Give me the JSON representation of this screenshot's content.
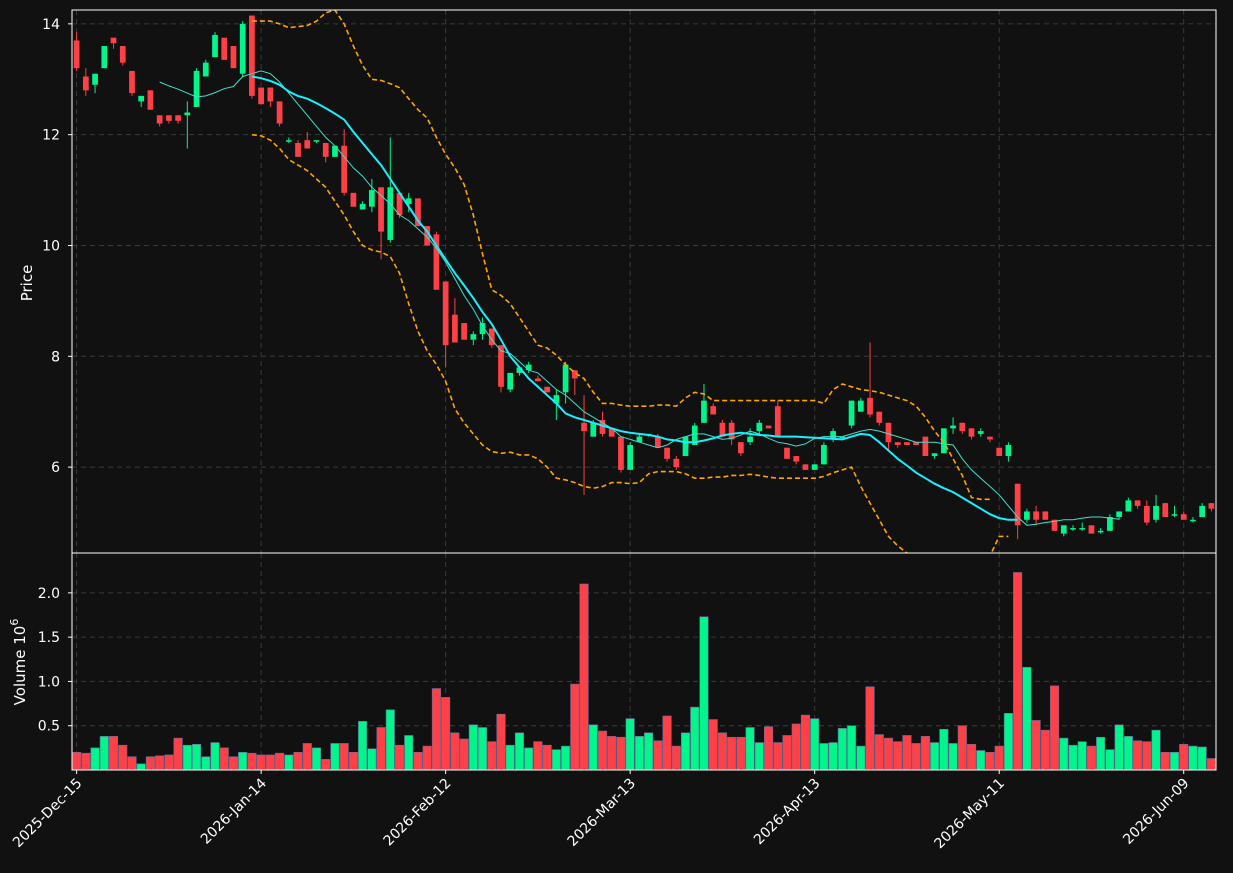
{
  "chart_data": [
    {
      "type": "candlestick",
      "ylabel": "Price",
      "ylim": [
        4.45,
        14.25
      ],
      "yticks": [
        6,
        8,
        10,
        12,
        14
      ],
      "grid": true,
      "x_date_labels": [
        "2025-Dec-15",
        "2026-Jan-14",
        "2026-Feb-12",
        "2026-Mar-13",
        "2026-Apr-13",
        "2026-May-11",
        "2026-Jun-09"
      ],
      "x_date_label_index": [
        0,
        20,
        40,
        60,
        80,
        100,
        120
      ],
      "candles_ohlc": [
        [
          13.7,
          13.85,
          13.15,
          13.2
        ],
        [
          13.05,
          13.2,
          12.7,
          12.8
        ],
        [
          12.9,
          13.1,
          12.75,
          13.1
        ],
        [
          13.2,
          13.6,
          13.2,
          13.6
        ],
        [
          13.75,
          13.75,
          13.55,
          13.65
        ],
        [
          13.6,
          13.6,
          13.25,
          13.3
        ],
        [
          13.15,
          13.15,
          12.7,
          12.75
        ],
        [
          12.6,
          12.7,
          12.5,
          12.7
        ],
        [
          12.8,
          12.8,
          12.45,
          12.45
        ],
        [
          12.35,
          12.35,
          12.15,
          12.2
        ],
        [
          12.35,
          12.35,
          12.2,
          12.25
        ],
        [
          12.35,
          12.35,
          12.2,
          12.25
        ],
        [
          12.35,
          12.6,
          11.75,
          12.4
        ],
        [
          12.5,
          13.2,
          12.5,
          13.15
        ],
        [
          13.05,
          13.35,
          13.05,
          13.3
        ],
        [
          13.4,
          13.85,
          13.4,
          13.8
        ],
        [
          13.75,
          13.75,
          13.4,
          13.35
        ],
        [
          13.6,
          13.6,
          13.2,
          13.2
        ],
        [
          13.1,
          14.05,
          13.05,
          14.0
        ],
        [
          14.15,
          14.15,
          12.65,
          12.7
        ],
        [
          12.85,
          12.85,
          12.55,
          12.55
        ],
        [
          12.85,
          12.85,
          12.5,
          12.6
        ],
        [
          12.6,
          12.6,
          12.15,
          12.2
        ],
        [
          11.9,
          11.95,
          11.85,
          11.9
        ],
        [
          11.85,
          11.9,
          11.6,
          11.6
        ],
        [
          11.9,
          12.05,
          11.75,
          11.75
        ],
        [
          11.9,
          11.9,
          11.85,
          11.9
        ],
        [
          11.85,
          11.85,
          11.5,
          11.6
        ],
        [
          11.6,
          11.8,
          11.6,
          11.8
        ],
        [
          11.8,
          12.1,
          10.9,
          10.95
        ],
        [
          10.95,
          10.95,
          10.7,
          10.7
        ],
        [
          10.65,
          10.8,
          10.65,
          10.75
        ],
        [
          10.7,
          11.2,
          10.6,
          11.0
        ],
        [
          11.05,
          11.05,
          9.75,
          10.25
        ],
        [
          10.1,
          11.95,
          10.05,
          11.05
        ],
        [
          10.95,
          10.95,
          10.5,
          10.55
        ],
        [
          10.75,
          10.95,
          10.6,
          10.85
        ],
        [
          10.85,
          10.85,
          10.35,
          10.35
        ],
        [
          10.35,
          10.35,
          10.0,
          10.0
        ],
        [
          10.2,
          10.25,
          9.3,
          9.2
        ],
        [
          9.35,
          9.35,
          7.8,
          8.2
        ],
        [
          8.75,
          9.05,
          8.3,
          8.25
        ],
        [
          8.6,
          8.6,
          8.3,
          8.3
        ],
        [
          8.3,
          8.45,
          8.2,
          8.4
        ],
        [
          8.4,
          8.7,
          8.3,
          8.6
        ],
        [
          8.5,
          8.5,
          8.15,
          8.2
        ],
        [
          8.2,
          8.2,
          7.35,
          7.45
        ],
        [
          7.4,
          7.7,
          7.35,
          7.7
        ],
        [
          7.7,
          7.8,
          7.65,
          7.8
        ],
        [
          7.75,
          7.9,
          7.7,
          7.85
        ],
        [
          7.6,
          7.65,
          7.55,
          7.55
        ],
        [
          7.45,
          7.45,
          7.35,
          7.35
        ],
        [
          7.15,
          7.4,
          6.85,
          7.3
        ],
        [
          7.35,
          7.9,
          7.15,
          7.85
        ],
        [
          7.75,
          7.75,
          7.3,
          7.6
        ],
        [
          6.8,
          7.3,
          5.5,
          6.65
        ],
        [
          6.55,
          6.85,
          6.55,
          6.8
        ],
        [
          6.85,
          7.0,
          6.55,
          6.6
        ],
        [
          6.7,
          6.7,
          6.55,
          6.55
        ],
        [
          6.55,
          6.55,
          5.9,
          5.95
        ],
        [
          5.95,
          6.45,
          5.95,
          6.4
        ],
        [
          6.45,
          6.6,
          6.45,
          6.55
        ],
        [
          6.6,
          6.6,
          6.55,
          6.6
        ],
        [
          6.55,
          6.6,
          6.35,
          6.35
        ],
        [
          6.35,
          6.35,
          6.1,
          6.15
        ],
        [
          6.15,
          6.2,
          5.95,
          6.0
        ],
        [
          6.2,
          6.55,
          6.2,
          6.55
        ],
        [
          6.4,
          6.8,
          6.4,
          6.75
        ],
        [
          6.8,
          7.5,
          6.8,
          7.2
        ],
        [
          7.1,
          7.15,
          6.95,
          6.95
        ],
        [
          6.8,
          6.85,
          6.55,
          6.55
        ],
        [
          6.8,
          6.85,
          6.4,
          6.5
        ],
        [
          6.45,
          6.45,
          6.2,
          6.25
        ],
        [
          6.45,
          6.7,
          6.4,
          6.55
        ],
        [
          6.65,
          6.85,
          6.6,
          6.8
        ],
        [
          6.75,
          6.75,
          6.7,
          6.7
        ],
        [
          7.1,
          7.2,
          6.55,
          6.55
        ],
        [
          6.35,
          6.35,
          6.15,
          6.15
        ],
        [
          6.2,
          6.2,
          6.05,
          6.1
        ],
        [
          6.05,
          6.05,
          5.95,
          5.95
        ],
        [
          5.95,
          6.05,
          5.95,
          6.05
        ],
        [
          6.05,
          6.45,
          6.05,
          6.4
        ],
        [
          6.5,
          6.7,
          6.45,
          6.65
        ],
        [
          6.55,
          6.55,
          6.5,
          6.55
        ],
        [
          6.75,
          7.2,
          6.7,
          7.2
        ],
        [
          7.0,
          7.25,
          7.0,
          7.2
        ],
        [
          7.25,
          8.25,
          6.9,
          6.95
        ],
        [
          7.0,
          7.0,
          6.75,
          6.8
        ],
        [
          6.8,
          6.8,
          6.3,
          6.45
        ],
        [
          6.45,
          6.45,
          6.35,
          6.4
        ],
        [
          6.45,
          6.45,
          6.4,
          6.4
        ],
        [
          6.45,
          6.45,
          6.4,
          6.4
        ],
        [
          6.55,
          6.55,
          6.2,
          6.2
        ],
        [
          6.2,
          6.25,
          6.15,
          6.25
        ],
        [
          6.25,
          6.7,
          6.25,
          6.7
        ],
        [
          6.7,
          6.9,
          6.6,
          6.75
        ],
        [
          6.8,
          6.8,
          6.6,
          6.65
        ],
        [
          6.7,
          6.7,
          6.5,
          6.55
        ],
        [
          6.6,
          6.7,
          6.55,
          6.65
        ],
        [
          6.55,
          6.55,
          6.45,
          6.5
        ],
        [
          6.35,
          6.35,
          6.2,
          6.2
        ],
        [
          6.2,
          6.45,
          6.1,
          6.4
        ],
        [
          5.7,
          5.7,
          4.7,
          4.95
        ],
        [
          5.05,
          5.25,
          5.0,
          5.2
        ],
        [
          5.2,
          5.3,
          4.95,
          5.05
        ],
        [
          5.2,
          5.2,
          5.05,
          5.05
        ],
        [
          5.05,
          5.05,
          4.85,
          4.85
        ],
        [
          4.8,
          4.95,
          4.75,
          4.95
        ],
        [
          4.9,
          4.95,
          4.85,
          4.9
        ],
        [
          4.9,
          5.0,
          4.85,
          4.9
        ],
        [
          4.95,
          4.95,
          4.8,
          4.8
        ],
        [
          4.85,
          4.9,
          4.8,
          4.85
        ],
        [
          4.85,
          5.15,
          4.85,
          5.1
        ],
        [
          5.1,
          5.2,
          5.05,
          5.2
        ],
        [
          5.2,
          5.45,
          5.2,
          5.4
        ],
        [
          5.4,
          5.4,
          5.25,
          5.3
        ],
        [
          5.3,
          5.4,
          4.95,
          5.0
        ],
        [
          5.05,
          5.5,
          5.0,
          5.3
        ],
        [
          5.35,
          5.35,
          5.1,
          5.1
        ],
        [
          5.15,
          5.3,
          5.1,
          5.15
        ],
        [
          5.15,
          5.2,
          5.05,
          5.05
        ],
        [
          5.05,
          5.1,
          5.0,
          5.05
        ],
        [
          5.1,
          5.35,
          5.1,
          5.3
        ],
        [
          5.35,
          5.35,
          5.2,
          5.25
        ]
      ],
      "overlays": [
        {
          "style": "solid-thin-teal",
          "start_index": 9,
          "values": [
            12.95,
            12.88,
            12.82,
            12.75,
            12.68,
            12.7,
            12.76,
            12.83,
            12.87,
            13.05,
            13.1,
            13.15,
            13.1,
            12.95,
            12.75,
            12.55,
            12.35,
            12.15,
            11.95,
            11.8,
            11.6,
            11.4,
            11.25,
            11.05,
            10.9,
            10.75,
            10.55,
            10.45,
            10.3,
            10.15,
            9.95,
            9.7,
            9.4,
            9.1,
            8.85,
            8.55,
            8.3,
            8.1,
            8.05,
            7.9,
            7.75,
            7.7,
            7.55,
            7.4,
            7.3,
            7.15,
            7.0,
            6.9,
            6.8,
            6.7,
            6.55,
            6.5,
            6.45,
            6.4,
            6.35,
            6.4,
            6.5,
            6.55,
            6.6,
            6.6,
            6.55,
            6.5,
            6.52,
            6.58,
            6.65,
            6.6,
            6.52,
            6.45,
            6.42,
            6.38,
            6.42,
            6.52,
            6.55,
            6.55,
            6.55,
            6.6,
            6.65,
            6.68,
            6.65,
            6.6,
            6.55,
            6.5,
            6.45,
            6.45,
            6.45,
            6.42,
            6.4,
            6.15,
            5.95,
            5.8,
            5.65,
            5.5,
            5.3,
            5.1,
            4.95,
            4.97,
            5.0,
            5.02,
            5.05,
            5.05,
            5.08,
            5.1,
            5.1,
            5.08,
            5.06
          ]
        },
        {
          "style": "solid-bold-cyan",
          "start_index": 19,
          "values": [
            13.05,
            13.02,
            12.97,
            12.9,
            12.78,
            12.7,
            12.65,
            12.57,
            12.48,
            12.38,
            12.27,
            12.05,
            11.85,
            11.65,
            11.45,
            11.2,
            10.95,
            10.7,
            10.45,
            10.25,
            10.0,
            9.75,
            9.5,
            9.28,
            9.05,
            8.8,
            8.58,
            8.3,
            8.0,
            7.8,
            7.6,
            7.45,
            7.3,
            7.15,
            6.97,
            6.9,
            6.85,
            6.8,
            6.75,
            6.7,
            6.65,
            6.62,
            6.6,
            6.58,
            6.55,
            6.5,
            6.48,
            6.45,
            6.45,
            6.48,
            6.52,
            6.57,
            6.6,
            6.62,
            6.6,
            6.58,
            6.57,
            6.55,
            6.55,
            6.55,
            6.54,
            6.53,
            6.52,
            6.51,
            6.5,
            6.55,
            6.6,
            6.58,
            6.45,
            6.3,
            6.15,
            6.03,
            5.9,
            5.8,
            5.7,
            5.62,
            5.55,
            5.45,
            5.35,
            5.25,
            5.15,
            5.08,
            5.05,
            5.05
          ]
        },
        {
          "style": "dashed-orange",
          "start_index": 19,
          "values": [
            14.05,
            14.05,
            14.05,
            14.0,
            13.93,
            13.95,
            13.97,
            14.05,
            14.2,
            14.25,
            14.0,
            13.6,
            13.25,
            13.0,
            12.98,
            12.92,
            12.85,
            12.65,
            12.45,
            12.3,
            11.95,
            11.65,
            11.4,
            11.1,
            10.55,
            9.85,
            9.2,
            9.1,
            8.95,
            8.7,
            8.45,
            8.2,
            8.15,
            8.02,
            7.85,
            7.7,
            7.6,
            7.35,
            7.15,
            7.15,
            7.12,
            7.1,
            7.1,
            7.1,
            7.12,
            7.12,
            7.1,
            7.25,
            7.35,
            7.32,
            7.2,
            7.2,
            7.2,
            7.2,
            7.2,
            7.2,
            7.2,
            7.2,
            7.2,
            7.2,
            7.2,
            7.2,
            7.15,
            7.4,
            7.5,
            7.45,
            7.4,
            7.38,
            7.35,
            7.3,
            7.25,
            7.2,
            7.1,
            6.9,
            6.65,
            6.45,
            6.15,
            5.85,
            5.45,
            5.42,
            5.42
          ]
        },
        {
          "style": "dashed-orange",
          "start_index": 19,
          "values": [
            12.0,
            11.98,
            11.9,
            11.75,
            11.55,
            11.45,
            11.35,
            11.2,
            11.05,
            10.8,
            10.55,
            10.25,
            10.0,
            9.92,
            9.88,
            9.8,
            9.5,
            8.95,
            8.45,
            8.1,
            7.85,
            7.55,
            7.05,
            6.8,
            6.6,
            6.4,
            6.28,
            6.25,
            6.27,
            6.22,
            6.22,
            6.15,
            6.0,
            5.8,
            5.77,
            5.72,
            5.65,
            5.62,
            5.65,
            5.72,
            5.72,
            5.7,
            5.72,
            5.88,
            5.92,
            5.92,
            5.92,
            5.88,
            5.8,
            5.8,
            5.82,
            5.82,
            5.85,
            5.85,
            5.87,
            5.85,
            5.82,
            5.8,
            5.8,
            5.8,
            5.8,
            5.8,
            5.83,
            5.9,
            5.95,
            6.0,
            5.65,
            5.35,
            5.05,
            4.75,
            4.58,
            4.45,
            4.35,
            4.3,
            4.27,
            4.25,
            4.22,
            4.2,
            4.18,
            4.25,
            4.4,
            4.75,
            4.75
          ]
        }
      ]
    },
    {
      "type": "bar",
      "ylabel": "Volume  10",
      "ylabel_exponent": "6",
      "yticks": [
        0.5,
        1.0,
        1.5,
        2.0
      ],
      "ytick_labels": [
        "0.5",
        "1.0",
        "1.5",
        "2.0"
      ],
      "ylim": [
        0,
        2.45
      ],
      "unit": "millions",
      "values": [
        0.2,
        0.19,
        0.25,
        0.38,
        0.38,
        0.28,
        0.15,
        0.07,
        0.15,
        0.16,
        0.17,
        0.36,
        0.28,
        0.29,
        0.15,
        0.31,
        0.25,
        0.15,
        0.2,
        0.19,
        0.17,
        0.17,
        0.19,
        0.17,
        0.2,
        0.3,
        0.25,
        0.12,
        0.3,
        0.3,
        0.2,
        0.55,
        0.24,
        0.48,
        0.68,
        0.28,
        0.39,
        0.2,
        0.27,
        0.92,
        0.82,
        0.42,
        0.35,
        0.51,
        0.48,
        0.32,
        0.63,
        0.28,
        0.42,
        0.25,
        0.32,
        0.28,
        0.23,
        0.27,
        0.97,
        2.1,
        0.51,
        0.44,
        0.38,
        0.37,
        0.58,
        0.38,
        0.42,
        0.33,
        0.61,
        0.27,
        0.42,
        0.71,
        1.73,
        0.57,
        0.42,
        0.37,
        0.37,
        0.48,
        0.31,
        0.49,
        0.31,
        0.39,
        0.52,
        0.62,
        0.58,
        0.3,
        0.31,
        0.47,
        0.5,
        0.27,
        0.94,
        0.4,
        0.36,
        0.32,
        0.39,
        0.3,
        0.38,
        0.31,
        0.46,
        0.3,
        0.5,
        0.29,
        0.22,
        0.2,
        0.27,
        0.64,
        2.23,
        1.16,
        0.56,
        0.45,
        0.95,
        0.36,
        0.28,
        0.32,
        0.27,
        0.37,
        0.23,
        0.51,
        0.38,
        0.33,
        0.32,
        0.45,
        0.2,
        0.2,
        0.29,
        0.27,
        0.26,
        0.13
      ],
      "colors": {
        "up": "#00f58c",
        "down": "#ff4047"
      }
    }
  ]
}
